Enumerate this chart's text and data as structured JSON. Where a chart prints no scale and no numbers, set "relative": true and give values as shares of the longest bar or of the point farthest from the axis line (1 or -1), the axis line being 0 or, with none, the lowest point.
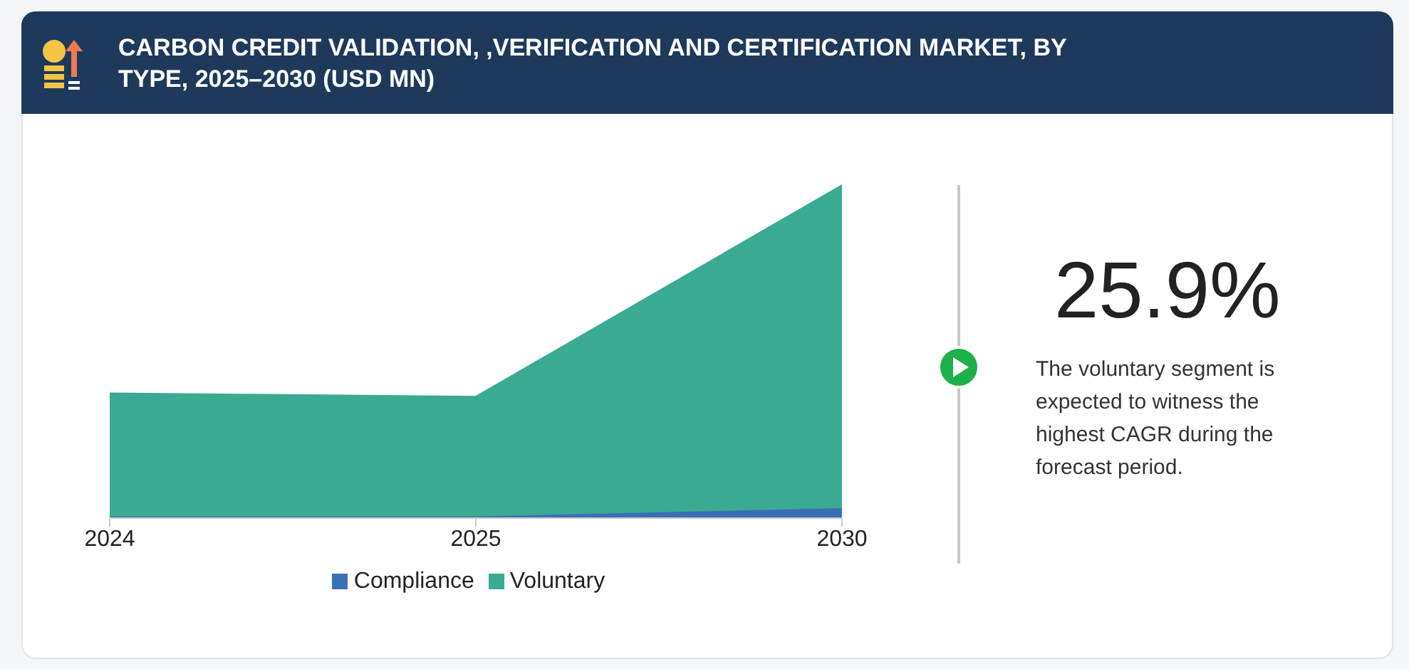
{
  "chart_data": {
    "type": "area",
    "title": "CARBON CREDIT VALIDATION, ,VERIFICATION AND CERTIFICATION MARKET, BY TYPE, 2025–2030 (USD MN)",
    "categories": [
      "2024",
      "2025",
      "2030"
    ],
    "series": [
      {
        "name": "Compliance",
        "color": "#3a6fb5",
        "values": [
          0.005,
          0.005,
          0.03
        ]
      },
      {
        "name": "Voluntary",
        "color": "#3aaa93",
        "values": [
          0.37,
          0.36,
          0.97
        ]
      }
    ],
    "stacked": true,
    "relative": true,
    "legend": "bottom",
    "annotations": [
      "25.9%",
      "The voluntary segment is expected to witness the highest CAGR during the forecast period."
    ]
  }
}
